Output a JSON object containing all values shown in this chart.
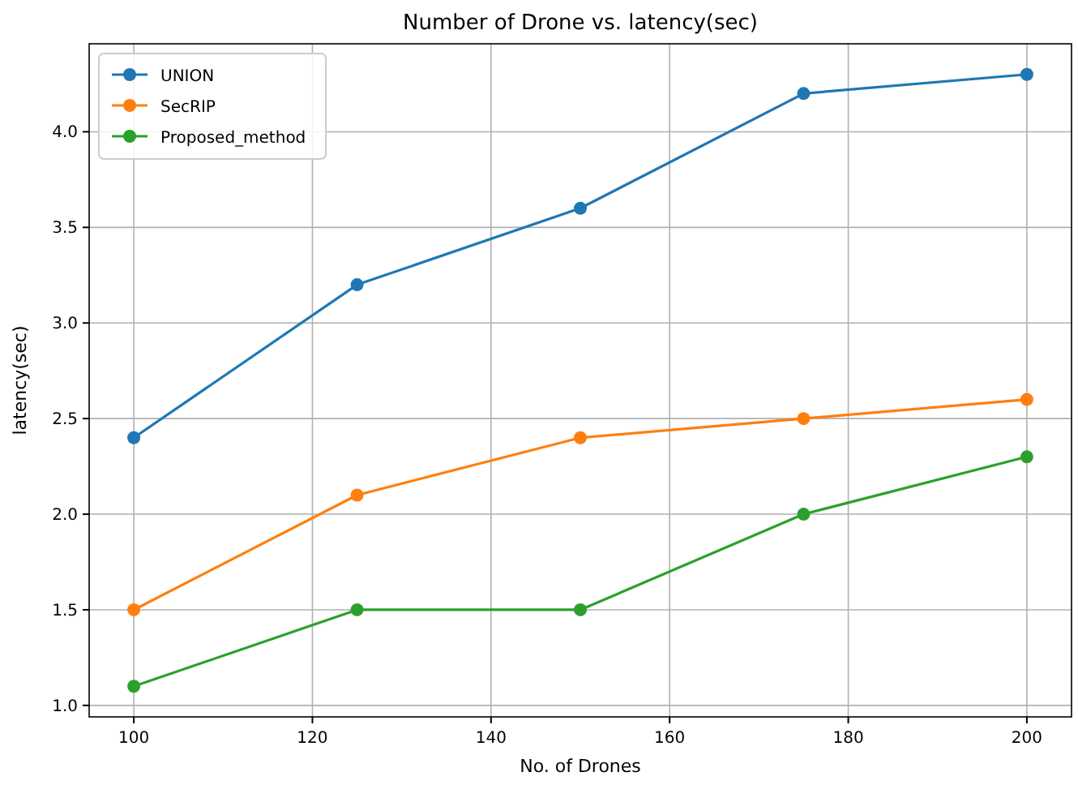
{
  "chart_data": {
    "type": "line",
    "title": "Number of Drone vs. latency(sec)",
    "xlabel": "No. of Drones",
    "ylabel": "latency(sec)",
    "x": [
      100,
      125,
      150,
      175,
      200
    ],
    "series": [
      {
        "name": "UNION",
        "color": "#1f77b4",
        "values": [
          2.4,
          3.2,
          3.6,
          4.2,
          4.3
        ]
      },
      {
        "name": "SecRIP",
        "color": "#ff7f0e",
        "values": [
          1.5,
          2.1,
          2.4,
          2.5,
          2.6
        ]
      },
      {
        "name": "Proposed_method",
        "color": "#2ca02c",
        "values": [
          1.1,
          1.5,
          1.5,
          2.0,
          2.3
        ]
      }
    ],
    "xlim": [
      95,
      205
    ],
    "xticks": [
      100,
      120,
      140,
      160,
      180,
      200
    ],
    "ylim": [
      0.94,
      4.46
    ],
    "yticks": [
      {
        "value": 1.0,
        "label": "1.0"
      },
      {
        "value": 1.5,
        "label": "1.5"
      },
      {
        "value": 2.0,
        "label": "2.0"
      },
      {
        "value": 2.5,
        "label": "2.5"
      },
      {
        "value": 3.0,
        "label": "3.0"
      },
      {
        "value": 3.5,
        "label": "3.5"
      },
      {
        "value": 4.0,
        "label": "4.0"
      }
    ],
    "grid": true,
    "legend": "top left",
    "marker": "circle",
    "line_style": "solid"
  }
}
